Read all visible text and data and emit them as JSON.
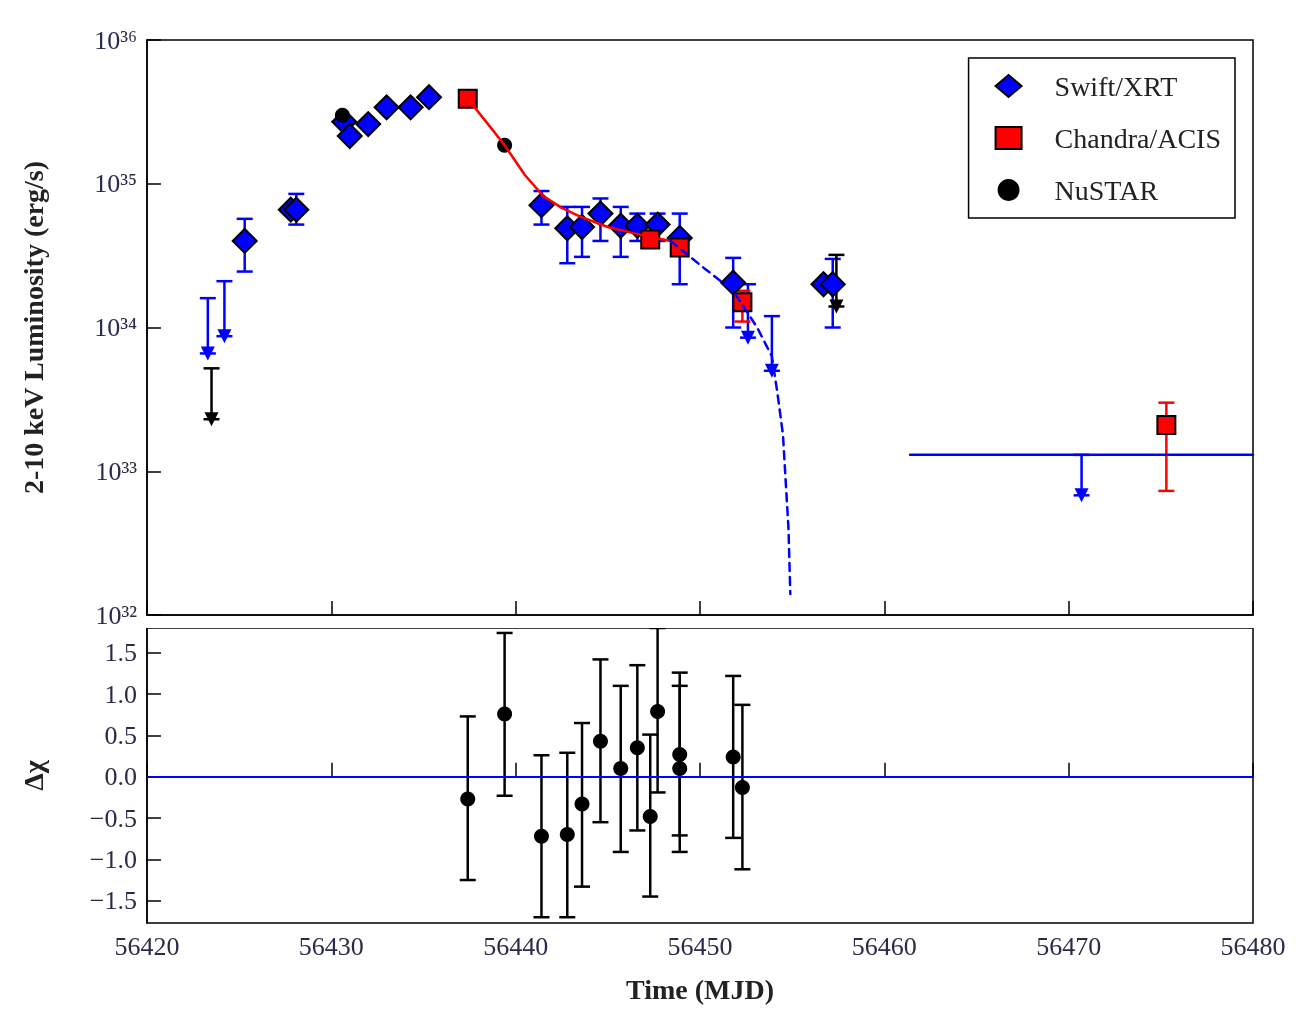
{
  "chart_data": [
    {
      "type": "scatter",
      "ylabel": "2-10 keV Luminosity (erg/s)",
      "log": "y",
      "xlim": [
        56420,
        56480
      ],
      "xticks": [
        56420,
        56430,
        56440,
        56450,
        56460,
        56470,
        56480
      ],
      "ylim": [
        1e+32,
        1e+36
      ],
      "yticks": [
        {
          "value": 1e+32,
          "label": "10³²"
        },
        {
          "value": 1e+33,
          "label": "10³³"
        },
        {
          "value": 1e+34,
          "label": "10³⁴"
        },
        {
          "value": 1e+35,
          "label": "10³⁵"
        },
        {
          "value": 1e+36,
          "label": "10³⁶"
        }
      ],
      "tick_labels": "y",
      "legend": "top right",
      "grid": false,
      "series": [
        {
          "type": "line",
          "color": "#ff0000",
          "line_style": "solid",
          "marker": "none",
          "x": [
            56437.4,
            56438.5,
            56439.4,
            56440.5,
            56441.5,
            56442.5,
            56443.5,
            56445,
            56446.5,
            56448,
            56448.4
          ],
          "values": [
            3.9e+35,
            2.6e+35,
            1.85e+35,
            1.15e+35,
            8.2e+34,
            6.8e+34,
            5.9e+34,
            5e+34,
            4.5e+34,
            4.1e+34,
            4e+34
          ]
        },
        {
          "type": "line",
          "color": "#0000ff",
          "line_style": "dashed",
          "marker": "none",
          "x": [
            56448.4,
            56450.2,
            56451.8,
            56453.1,
            56453.9,
            56454.2,
            56454.5,
            56454.8,
            56454.9
          ],
          "values": [
            4e+34,
            2.6e+34,
            1.8e+34,
            1e+34,
            6.3e+33,
            3.5e+33,
            1.8e+33,
            4e+32,
            1.4e+32
          ]
        },
        {
          "name": "Swift/XRT",
          "color": "#0000ff",
          "marker": "diamond",
          "x": [
            56425.3,
            56427.8,
            56428.1,
            56430.7,
            56431.0,
            56432.0,
            56433.0,
            56434.3,
            56435.3,
            56441.4,
            56442.8,
            56443.6,
            56444.6,
            56445.7,
            56446.6,
            56447.7,
            56448.9,
            56451.8,
            56456.7,
            56457.2
          ],
          "values": [
            4e+34,
            6.6e+34,
            6.6e+34,
            2.7e+35,
            2.15e+35,
            2.6e+35,
            3.4e+35,
            3.4e+35,
            4e+35,
            7.1e+34,
            4.9e+34,
            5e+34,
            6.2e+34,
            5.1e+34,
            5.1e+34,
            5.2e+34,
            4.2e+34,
            2.05e+34,
            2e+34,
            2e+34
          ],
          "errors": [
            [
              2.45e+34,
              5.7e+34
            ],
            null,
            [
              5.2e+34,
              8.5e+34
            ],
            null,
            null,
            null,
            null,
            null,
            null,
            [
              5.2e+34,
              8.9e+34
            ],
            [
              2.8e+34,
              6.9e+34
            ],
            [
              3.1e+34,
              6.9e+34
            ],
            [
              4e+34,
              7.9e+34
            ],
            [
              3.1e+34,
              6.9e+34
            ],
            [
              4e+34,
              6.2e+34
            ],
            [
              4e+34,
              6.2e+34
            ],
            [
              2e+34,
              6.2e+34
            ],
            [
              1e+34,
              3.05e+34
            ],
            null,
            [
              1e+34,
              3e+34
            ]
          ]
        },
        {
          "color": "#0000ff",
          "marker": "triangle",
          "x": [
            56423.3,
            56424.2,
            56452.6,
            56453.9,
            56470.7
          ],
          "values": [
            6.6e+33,
            8.7e+33,
            8.5e+33,
            5e+33,
            6.8e+32
          ],
          "errors": [
            [
              6.6e+33,
              1.6e+34
            ],
            [
              8.7e+33,
              2.1e+34
            ],
            [
              8.5e+33,
              2e+34
            ],
            [
              5e+33,
              1.2e+34
            ],
            [
              6.8e+32,
              1.3e+33
            ]
          ]
        },
        {
          "type": "line",
          "color": "#0000ff",
          "line_style": "solid",
          "marker": "none",
          "x": [
            56461.4,
            56480.0
          ],
          "values": [
            1.3e+33,
            1.3e+33
          ]
        },
        {
          "name": "Chandra/ACIS",
          "color": "#ff0000",
          "marker": "square",
          "x": [
            56437.4,
            56447.3,
            56448.9,
            56452.3,
            56475.3
          ],
          "values": [
            3.9e+35,
            4.1e+34,
            3.6e+34,
            1.5e+34,
            2.1e+33
          ],
          "errors": [
            null,
            null,
            null,
            [
              1.1e+34,
              1.8e+34
            ],
            [
              7.3e+32,
              3e+33
            ]
          ]
        },
        {
          "name": "NuSTAR",
          "color": "#000000",
          "marker": "circle",
          "x": [
            56430.6,
            56439.4
          ],
          "values": [
            3e+35,
            1.85e+35
          ]
        },
        {
          "color": "#000000",
          "marker": "triangle",
          "x": [
            56423.5,
            56457.4
          ],
          "values": [
            2.3e+33,
            1.4e+34
          ],
          "errors": [
            [
              2.3e+33,
              5.2e+33
            ],
            [
              1.4e+34,
              3.2e+34
            ]
          ]
        }
      ]
    },
    {
      "type": "scatter",
      "xlabel": "Time (MJD)",
      "ylabel": "Δχ",
      "xlim": [
        56420,
        56480
      ],
      "xticks": [
        56420,
        56430,
        56440,
        56450,
        56460,
        56470,
        56480
      ],
      "ylim": [
        -1.77,
        1.8
      ],
      "yticks": [
        {
          "value": -1.5,
          "label": "−1.5"
        },
        {
          "value": -1.0,
          "label": "−1.0"
        },
        {
          "value": -0.5,
          "label": "−0.5"
        },
        {
          "value": 0,
          "label": "0.0"
        },
        {
          "value": 0.5,
          "label": "0.5"
        },
        {
          "value": 1.0,
          "label": "1.0"
        },
        {
          "value": 1.5,
          "label": "1.5"
        }
      ],
      "grid": false,
      "legend": false,
      "ref_lines": [
        {
          "axis": "y",
          "value": 0,
          "color": "#0000ff",
          "line_style": "solid"
        }
      ],
      "series": [
        {
          "color": "#000000",
          "marker": "circle",
          "x": [
            56437.4,
            56439.4,
            56441.4,
            56442.8,
            56443.6,
            56444.6,
            56445.7,
            56446.6,
            56447.3,
            56447.7,
            56448.9,
            56448.9,
            56451.8,
            56452.3
          ],
          "values": [
            -0.27,
            0.76,
            -0.72,
            -0.7,
            -0.33,
            0.43,
            0.1,
            0.35,
            -0.48,
            0.79,
            0.27,
            0.1,
            0.24,
            -0.13
          ],
          "errors": [
            [
              -1.25,
              0.73
            ],
            [
              -0.23,
              1.74
            ],
            [
              -1.7,
              0.26
            ],
            [
              -1.7,
              0.29
            ],
            [
              -1.33,
              0.65
            ],
            [
              -0.55,
              1.42
            ],
            [
              -0.91,
              1.1
            ],
            [
              -0.65,
              1.35
            ],
            [
              -1.45,
              0.51
            ],
            [
              -0.19,
              1.8
            ],
            [
              -0.71,
              1.26
            ],
            [
              -0.91,
              1.1
            ],
            [
              -0.74,
              1.22
            ],
            [
              -1.12,
              0.87
            ]
          ]
        }
      ]
    }
  ]
}
